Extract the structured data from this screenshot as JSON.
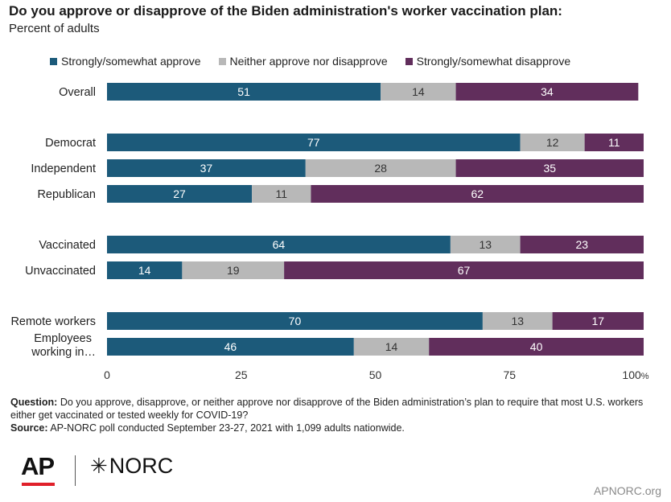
{
  "title": "Do you approve or disapprove of the Biden administration's worker vaccination plan:",
  "subtitle": "Percent of adults",
  "legend": [
    {
      "label": "Strongly/somewhat approve",
      "color": "#1c5a7a"
    },
    {
      "label": "Neither approve nor disapprove",
      "color": "#b8b8b8"
    },
    {
      "label": "Strongly/somewhat disapprove",
      "color": "#612e5c"
    }
  ],
  "chart_data": {
    "type": "bar",
    "orientation": "horizontal",
    "stacked": true,
    "categories": [
      "Overall",
      "Democrat",
      "Independent",
      "Republican",
      "Vaccinated",
      "Unvaccinated",
      "Remote workers",
      "Employees working in…"
    ],
    "series": [
      {
        "name": "Strongly/somewhat approve",
        "color": "#1c5a7a",
        "values": [
          51,
          77,
          37,
          27,
          64,
          14,
          70,
          46
        ]
      },
      {
        "name": "Neither approve nor disapprove",
        "color": "#b8b8b8",
        "values": [
          14,
          12,
          28,
          11,
          13,
          19,
          13,
          14
        ]
      },
      {
        "name": "Strongly/somewhat disapprove",
        "color": "#612e5c",
        "values": [
          34,
          11,
          35,
          62,
          23,
          67,
          17,
          40
        ]
      }
    ],
    "xlim": [
      0,
      100
    ],
    "xticks": [
      "0",
      "25",
      "50",
      "75",
      "100%"
    ],
    "grid": false,
    "legend_position": "top"
  },
  "footer": {
    "question_label": "Question:",
    "question_text": "Do you approve, disapprove, or neither approve nor disapprove of the Biden administration’s plan to require that most U.S. workers either get vaccinated or tested weekly for COVID-19?",
    "source_label": "Source:",
    "source_text": "AP-NORC poll conducted September 23-27, 2021 with 1,099 adults nationwide."
  },
  "logos": {
    "ap": "AP",
    "norc": "NORC",
    "norc_mark": "✳"
  },
  "website": "APNORC.org"
}
